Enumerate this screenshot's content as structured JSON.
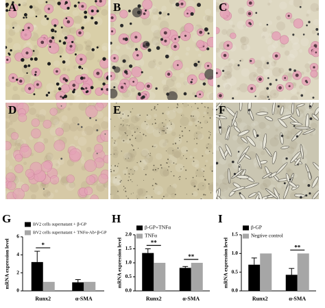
{
  "panels": [
    "A",
    "B",
    "C",
    "D",
    "E",
    "F"
  ],
  "chart_data": [
    {
      "type": "bar",
      "panel_label": "G",
      "ylabel": "mRNA expression level",
      "categories": [
        "Runx2",
        "α-SMA"
      ],
      "series": [
        {
          "name": "BV2 cells supernatant + β-GP",
          "color": "#000000",
          "values": [
            3.2,
            0.95
          ],
          "errors": [
            1.2,
            0.3
          ]
        },
        {
          "name": "BV2 cells supernatant + TNFα-Ab+β-GP",
          "color": "#a6a6a6",
          "values": [
            1.0,
            1.0
          ]
        }
      ],
      "significance": [
        "*",
        null
      ],
      "ylim": [
        0,
        6
      ],
      "yticks": [
        0,
        2,
        4,
        6
      ]
    },
    {
      "type": "bar",
      "panel_label": "H",
      "ylabel": "mRNA expression level",
      "categories": [
        "Runx2",
        "α-SMA"
      ],
      "series": [
        {
          "name": "β-GP+TNFα",
          "color": "#000000",
          "values": [
            1.35,
            0.82
          ],
          "errors": [
            0.15,
            0.05
          ]
        },
        {
          "name": "TNFα",
          "color": "#a6a6a6",
          "values": [
            1.0,
            1.0
          ]
        }
      ],
      "significance": [
        "**",
        "**"
      ],
      "ylim": [
        0,
        2
      ],
      "yticks": [
        {
          "value": 0,
          "label": "0.0"
        },
        0.5,
        {
          "value": 1,
          "label": "1.0"
        },
        1.5,
        {
          "value": 2,
          "label": "2.0"
        }
      ]
    },
    {
      "type": "bar",
      "panel_label": "I",
      "ylabel": "mRNA expression level",
      "categories": [
        "Runx2",
        "α-SMA"
      ],
      "series": [
        {
          "name": "β-GP",
          "color": "#000000",
          "values": [
            0.7,
            0.43
          ],
          "errors": [
            0.18,
            0.17
          ]
        },
        {
          "name": "Negtive control",
          "color": "#a6a6a6",
          "values": [
            1.0,
            1.0
          ]
        }
      ],
      "significance": [
        null,
        "**"
      ],
      "ylim": [
        0,
        1.5
      ],
      "yticks": [
        {
          "value": 0,
          "label": "0.0"
        },
        0.5,
        {
          "value": 1,
          "label": "1.0"
        },
        1.5
      ]
    }
  ]
}
